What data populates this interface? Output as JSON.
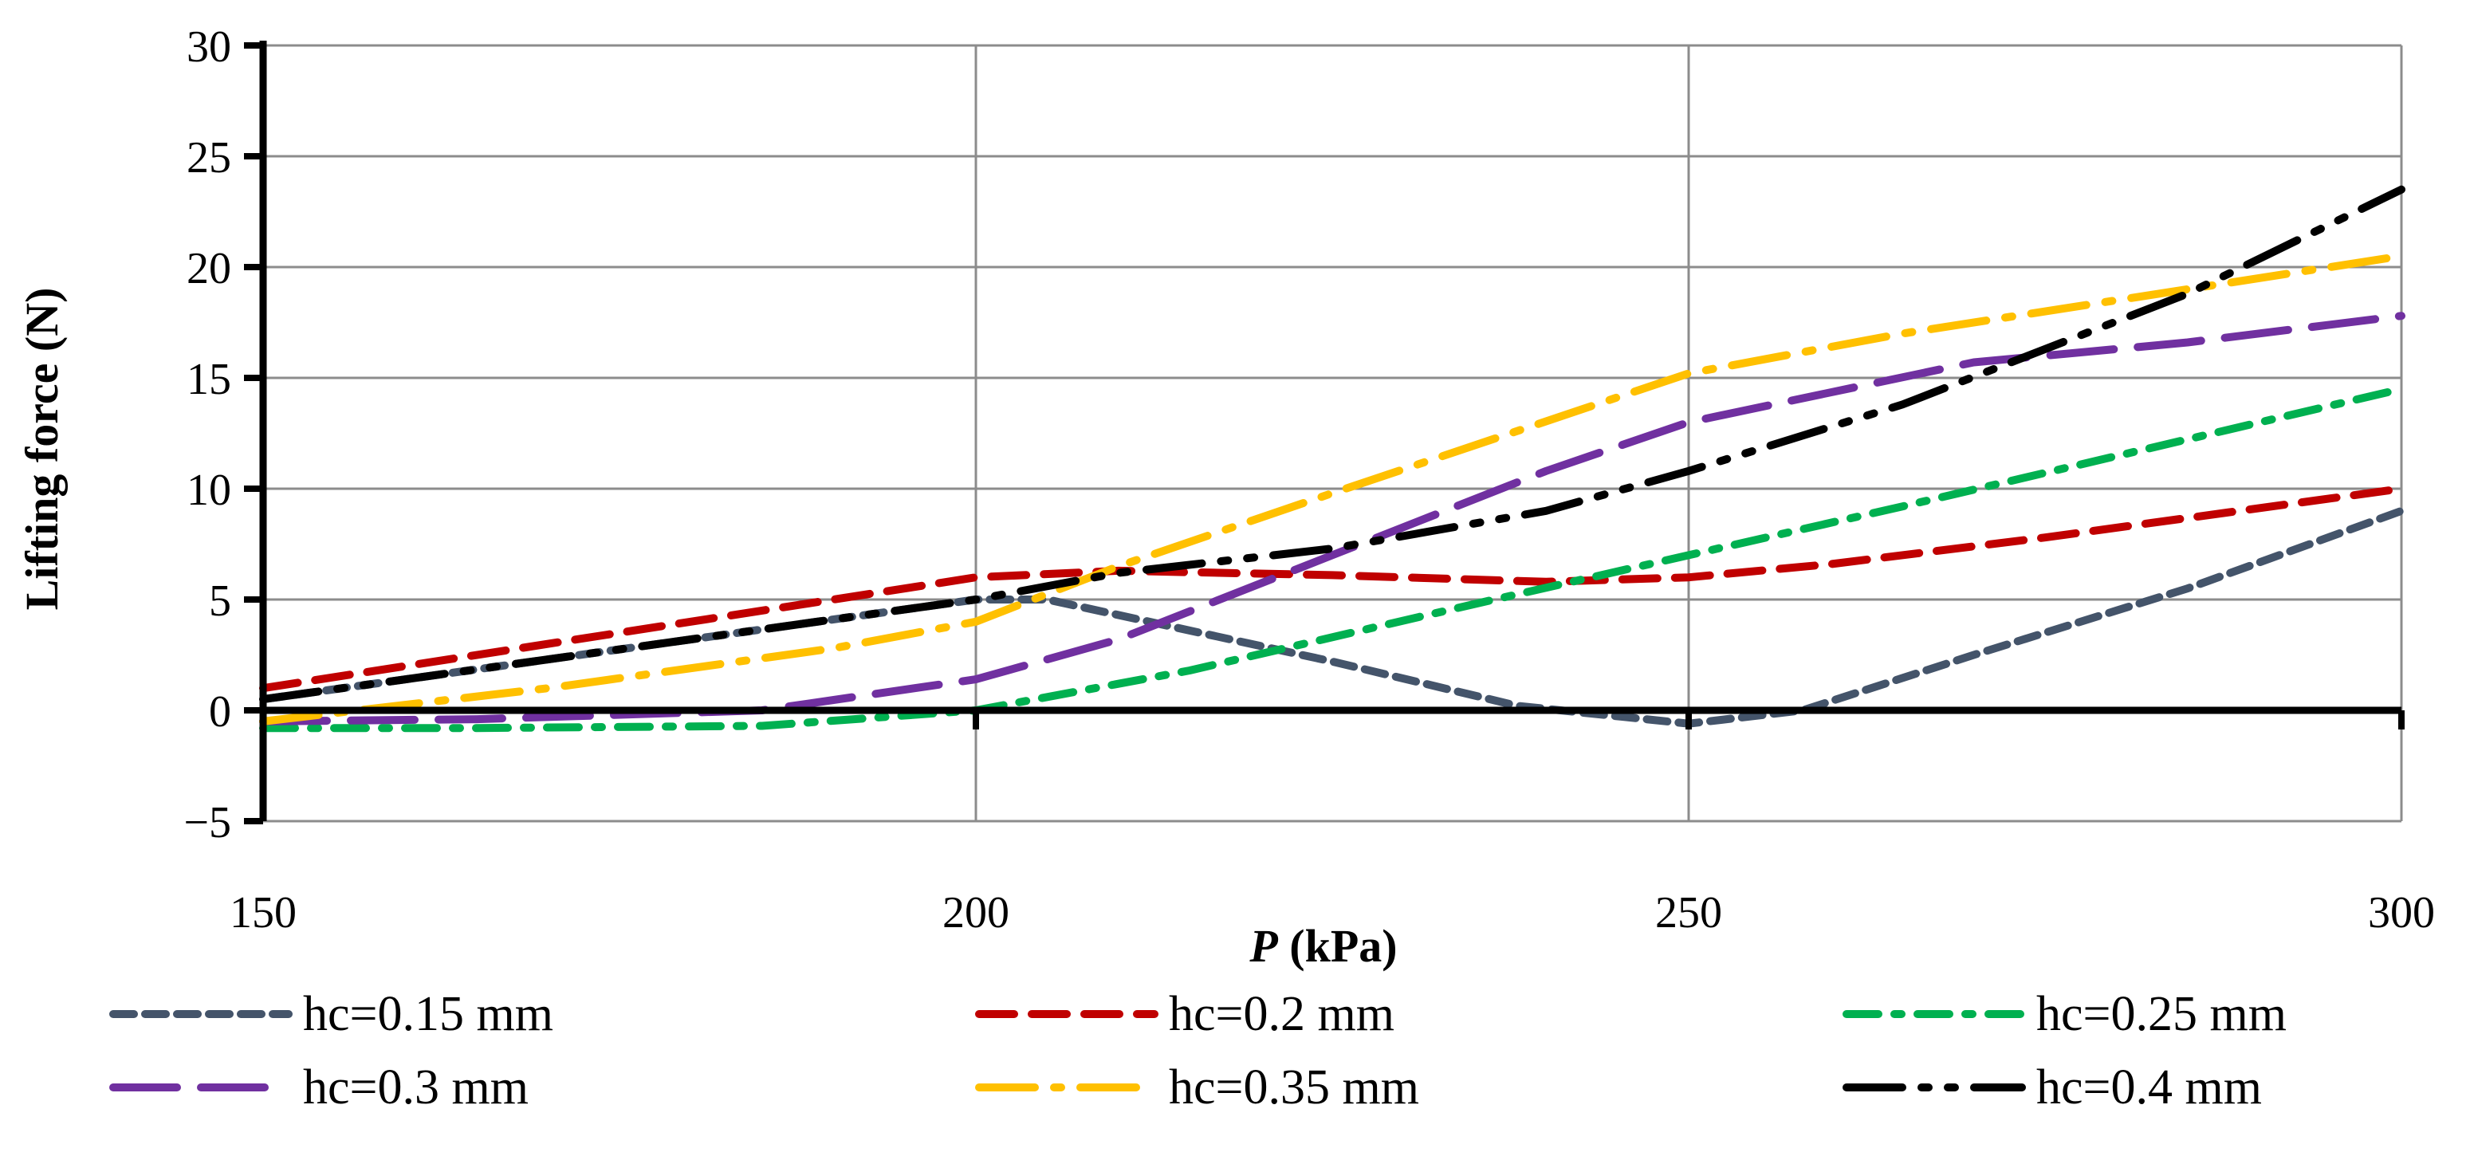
{
  "chart_data": {
    "type": "line",
    "title": "",
    "xlabel_var": "P",
    "xlabel_unit": " (kPa)",
    "ylabel": "Lifting force (N)",
    "xlim": [
      150,
      300
    ],
    "ylim": [
      -5,
      30
    ],
    "x_ticks": [
      150,
      200,
      250,
      300
    ],
    "y_ticks": [
      -5,
      0,
      5,
      10,
      15,
      20,
      25,
      30
    ],
    "y_tick_labels": [
      "−5",
      "0",
      "5",
      "10",
      "15",
      "20",
      "25",
      "30"
    ],
    "grid": true,
    "legend_position": "bottom",
    "series": [
      {
        "name": "hc=0.15 mm",
        "color": "#44546A",
        "dash": "short-dash",
        "points": [
          [
            150,
            0.5
          ],
          [
            200,
            5.0
          ],
          [
            205,
            5.0
          ],
          [
            225,
            2.2
          ],
          [
            238,
            0.2
          ],
          [
            250,
            -0.6
          ],
          [
            258,
            0.0
          ],
          [
            270,
            2.5
          ],
          [
            285,
            5.5
          ],
          [
            300,
            9.0
          ]
        ]
      },
      {
        "name": "hc=0.2 mm",
        "color": "#C00000",
        "dash": "dash",
        "points": [
          [
            150,
            1.0
          ],
          [
            200,
            6.0
          ],
          [
            210,
            6.3
          ],
          [
            225,
            6.1
          ],
          [
            240,
            5.8
          ],
          [
            250,
            6.0
          ],
          [
            260,
            6.6
          ],
          [
            275,
            7.8
          ],
          [
            300,
            10.0
          ]
        ]
      },
      {
        "name": "hc=0.25 mm",
        "color": "#00B050",
        "dash": "dash-dot",
        "points": [
          [
            150,
            -0.8
          ],
          [
            165,
            -0.8
          ],
          [
            185,
            -0.7
          ],
          [
            200,
            0.0
          ],
          [
            215,
            1.8
          ],
          [
            235,
            4.8
          ],
          [
            250,
            7.0
          ],
          [
            265,
            9.2
          ],
          [
            300,
            14.5
          ]
        ]
      },
      {
        "name": "hc=0.3 mm",
        "color": "#7030A0",
        "dash": "long-dash",
        "points": [
          [
            150,
            -0.5
          ],
          [
            165,
            -0.4
          ],
          [
            185,
            0.0
          ],
          [
            200,
            1.4
          ],
          [
            210,
            3.2
          ],
          [
            225,
            7.0
          ],
          [
            240,
            10.8
          ],
          [
            250,
            13.0
          ],
          [
            270,
            15.7
          ],
          [
            285,
            16.6
          ],
          [
            300,
            17.8
          ]
        ]
      },
      {
        "name": "hc=0.35 mm",
        "color": "#FFC000",
        "dash": "long-dash-dot",
        "points": [
          [
            150,
            -0.5
          ],
          [
            170,
            1.0
          ],
          [
            190,
            2.8
          ],
          [
            200,
            4.0
          ],
          [
            210,
            6.5
          ],
          [
            225,
            9.8
          ],
          [
            250,
            15.2
          ],
          [
            265,
            17.0
          ],
          [
            280,
            18.5
          ],
          [
            300,
            20.5
          ]
        ]
      },
      {
        "name": "hc=0.4 mm",
        "color": "#000000",
        "dash": "long-dash-dot-dot",
        "points": [
          [
            150,
            0.5
          ],
          [
            200,
            5.0
          ],
          [
            210,
            6.2
          ],
          [
            225,
            7.3
          ],
          [
            240,
            9.0
          ],
          [
            250,
            10.8
          ],
          [
            265,
            13.8
          ],
          [
            285,
            18.8
          ],
          [
            300,
            23.5
          ]
        ]
      }
    ]
  }
}
